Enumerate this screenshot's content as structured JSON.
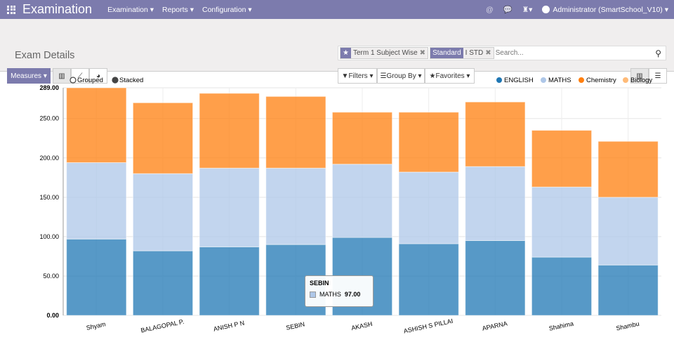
{
  "topbar": {
    "brand": "Examination",
    "menus": [
      "Examination ▾",
      "Reports ▾",
      "Configuration ▾"
    ],
    "user": "Administrator (SmartSchool_V10) ▾"
  },
  "control": {
    "title": "Exam Details",
    "facets": [
      {
        "label": "★",
        "value": "Term 1 Subject Wise"
      },
      {
        "label": "Standard",
        "value": "I STD"
      }
    ],
    "search_placeholder": "Search...",
    "measures": "Measures ▾",
    "filters": "Filters ▾",
    "groupby": "Group By ▾",
    "favorites": "Favorites ▾"
  },
  "chart_data": {
    "type": "bar",
    "stacked": true,
    "modes": [
      "Grouped",
      "Stacked"
    ],
    "active_mode": "Stacked",
    "categories": [
      "Shyam",
      "BALAGOPAL P.",
      "ANISH P N",
      "SEBIN",
      "AKASH",
      "ASHISH S PILLAI",
      "APARNA",
      "Shahima",
      "Shambu"
    ],
    "series": [
      {
        "name": "ENGLISH",
        "color": "#1f77b4",
        "values": [
          97,
          82,
          87,
          90,
          99,
          91,
          95,
          74,
          64
        ]
      },
      {
        "name": "MATHS",
        "color": "#aec7e8",
        "values": [
          97,
          98,
          100,
          97,
          93,
          91,
          94,
          89,
          86
        ]
      },
      {
        "name": "Chemistry",
        "color": "#ff7f0e",
        "values": [
          95,
          90,
          95,
          91,
          66,
          76,
          82,
          72,
          71
        ]
      },
      {
        "name": "Biology",
        "color": "#ffbb78",
        "values": [
          0,
          0,
          0,
          0,
          0,
          0,
          0,
          0,
          0
        ]
      }
    ],
    "ylim": [
      0,
      289
    ],
    "yticks": [
      "0.00",
      "50.00",
      "100.00",
      "150.00",
      "200.00",
      "250.00",
      "289.00"
    ],
    "grid": true,
    "legend": "top-right",
    "tooltip": {
      "title": "SEBIN",
      "series": "MATHS",
      "value": "97.00"
    }
  }
}
